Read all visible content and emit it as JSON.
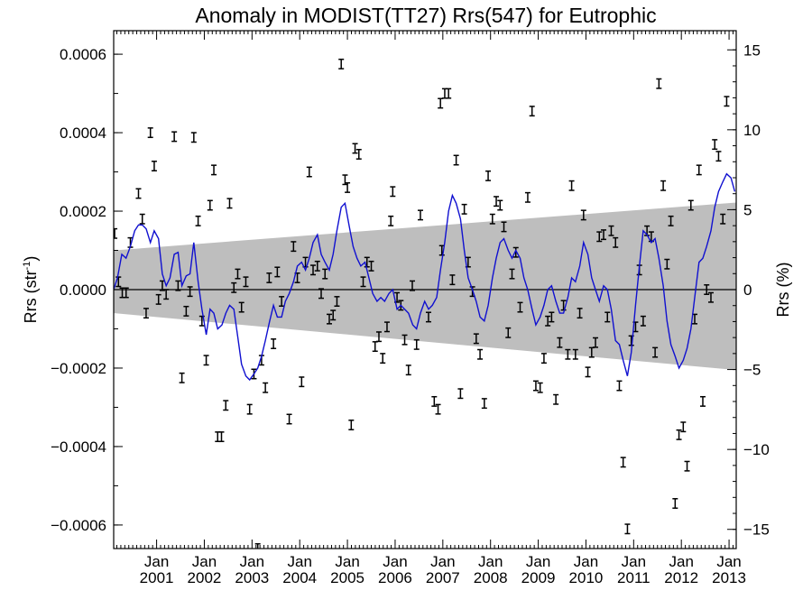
{
  "chart_data": {
    "type": "scatter",
    "title": "Anomaly in MODIST(TT27) Rrs(547) for Eutrophic",
    "ylabel_left": "Rrs (str",
    "ylabel_left_sup": "-1",
    "ylabel_left_close": ")",
    "ylabel_right": "Rrs (%)",
    "xlabel": "",
    "xlim": [
      2000.1,
      2013.15
    ],
    "ylim_left": [
      -0.00066,
      0.00066
    ],
    "ylim_right": [
      -16.2,
      16.2
    ],
    "y_ticks_left": [
      {
        "value": 0.0006,
        "label": "0.0006"
      },
      {
        "value": 0.0004,
        "label": "0.0004"
      },
      {
        "value": 0.0002,
        "label": "0.0002"
      },
      {
        "value": 0.0,
        "label": "0.0000"
      },
      {
        "value": -0.0002,
        "label": "−0.0002"
      },
      {
        "value": -0.0004,
        "label": "−0.0004"
      },
      {
        "value": -0.0006,
        "label": "−0.0006"
      }
    ],
    "y_ticks_right": [
      {
        "value": 15,
        "label": "15"
      },
      {
        "value": 10,
        "label": "10"
      },
      {
        "value": 5,
        "label": "5"
      },
      {
        "value": 0,
        "label": "0"
      },
      {
        "value": -5,
        "label": "−5"
      },
      {
        "value": -10,
        "label": "−10"
      },
      {
        "value": -15,
        "label": "−15"
      }
    ],
    "x_ticks": [
      {
        "value": 2001,
        "month": "Jan",
        "year": "2001"
      },
      {
        "value": 2002,
        "month": "Jan",
        "year": "2002"
      },
      {
        "value": 2003,
        "month": "Jan",
        "year": "2003"
      },
      {
        "value": 2004,
        "month": "Jan",
        "year": "2004"
      },
      {
        "value": 2005,
        "month": "Jan",
        "year": "2005"
      },
      {
        "value": 2006,
        "month": "Jan",
        "year": "2006"
      },
      {
        "value": 2007,
        "month": "Jan",
        "year": "2007"
      },
      {
        "value": 2008,
        "month": "Jan",
        "year": "2008"
      },
      {
        "value": 2009,
        "month": "Jan",
        "year": "2009"
      },
      {
        "value": 2010,
        "month": "Jan",
        "year": "2010"
      },
      {
        "value": 2011,
        "month": "Jan",
        "year": "2011"
      },
      {
        "value": 2012,
        "month": "Jan",
        "year": "2012"
      },
      {
        "value": 2013,
        "month": "Jan",
        "year": "2013"
      }
    ],
    "band": {
      "color": "#bebebe",
      "start": {
        "x": 2000.1,
        "low": -6e-05,
        "high": 0.0001
      },
      "end": {
        "x": 2013.15,
        "low": -0.000205,
        "high": 0.000222
      }
    },
    "zero_line": 0,
    "colors": {
      "points": "#000000",
      "smooth_line": "#1010d0",
      "band": "#bebebe"
    },
    "error_half_width": 1.2e-05,
    "points": [
      {
        "x": 2000.12,
        "y": 0.000143
      },
      {
        "x": 2000.2,
        "y": 2e-05
      },
      {
        "x": 2000.28,
        "y": -8e-06
      },
      {
        "x": 2000.36,
        "y": -8e-06
      },
      {
        "x": 2000.45,
        "y": 0.00012
      },
      {
        "x": 2000.62,
        "y": 0.000245
      },
      {
        "x": 2000.7,
        "y": 0.00018
      },
      {
        "x": 2000.78,
        "y": -6e-05
      },
      {
        "x": 2000.87,
        "y": 0.0004
      },
      {
        "x": 2000.95,
        "y": 0.000315
      },
      {
        "x": 2001.04,
        "y": -2.5e-05
      },
      {
        "x": 2001.12,
        "y": 1e-05
      },
      {
        "x": 2001.2,
        "y": -1.2e-05
      },
      {
        "x": 2001.37,
        "y": 0.00039
      },
      {
        "x": 2001.45,
        "y": 1e-05
      },
      {
        "x": 2001.53,
        "y": -0.000225
      },
      {
        "x": 2001.62,
        "y": -5.5e-05
      },
      {
        "x": 2001.7,
        "y": -5e-06
      },
      {
        "x": 2001.78,
        "y": 0.000388
      },
      {
        "x": 2001.87,
        "y": 0.000175
      },
      {
        "x": 2001.95,
        "y": -8e-05
      },
      {
        "x": 2002.04,
        "y": -0.00018
      },
      {
        "x": 2002.12,
        "y": 0.000215
      },
      {
        "x": 2002.2,
        "y": 0.000305
      },
      {
        "x": 2002.28,
        "y": -0.000375
      },
      {
        "x": 2002.36,
        "y": -0.000375
      },
      {
        "x": 2002.45,
        "y": -0.000295
      },
      {
        "x": 2002.53,
        "y": 0.00022
      },
      {
        "x": 2002.62,
        "y": 5e-06
      },
      {
        "x": 2002.7,
        "y": 4e-05
      },
      {
        "x": 2002.78,
        "y": -4.5e-05
      },
      {
        "x": 2002.87,
        "y": 2e-05
      },
      {
        "x": 2002.95,
        "y": -0.000305
      },
      {
        "x": 2003.04,
        "y": -0.000215
      },
      {
        "x": 2003.12,
        "y": -0.00066
      },
      {
        "x": 2003.2,
        "y": -0.00018
      },
      {
        "x": 2003.28,
        "y": -0.00025
      },
      {
        "x": 2003.36,
        "y": 3e-05
      },
      {
        "x": 2003.45,
        "y": -0.000138
      },
      {
        "x": 2003.53,
        "y": 4.5e-05
      },
      {
        "x": 2003.62,
        "y": -3e-05
      },
      {
        "x": 2003.78,
        "y": -0.00033
      },
      {
        "x": 2003.87,
        "y": 0.00011
      },
      {
        "x": 2003.95,
        "y": 3e-05
      },
      {
        "x": 2004.04,
        "y": -0.000235
      },
      {
        "x": 2004.12,
        "y": 7e-05
      },
      {
        "x": 2004.2,
        "y": 0.0003
      },
      {
        "x": 2004.28,
        "y": 5e-05
      },
      {
        "x": 2004.37,
        "y": 6e-05
      },
      {
        "x": 2004.45,
        "y": -1e-05
      },
      {
        "x": 2004.53,
        "y": 4e-05
      },
      {
        "x": 2004.62,
        "y": -7.5e-05
      },
      {
        "x": 2004.7,
        "y": -6.5e-05
      },
      {
        "x": 2004.78,
        "y": -3e-05
      },
      {
        "x": 2004.87,
        "y": 0.000575
      },
      {
        "x": 2004.95,
        "y": 0.00028
      },
      {
        "x": 2005.0,
        "y": 0.00026
      },
      {
        "x": 2005.08,
        "y": -0.000345
      },
      {
        "x": 2005.16,
        "y": 0.00036
      },
      {
        "x": 2005.24,
        "y": 0.000345
      },
      {
        "x": 2005.33,
        "y": 2e-05
      },
      {
        "x": 2005.41,
        "y": 7e-05
      },
      {
        "x": 2005.5,
        "y": 6e-05
      },
      {
        "x": 2005.58,
        "y": -0.000145
      },
      {
        "x": 2005.66,
        "y": -0.00012
      },
      {
        "x": 2005.74,
        "y": -0.000175
      },
      {
        "x": 2005.83,
        "y": -9.5e-05
      },
      {
        "x": 2005.91,
        "y": 0.000175
      },
      {
        "x": 2005.95,
        "y": 0.00025
      },
      {
        "x": 2006.04,
        "y": -2e-05
      },
      {
        "x": 2006.12,
        "y": -4e-05
      },
      {
        "x": 2006.2,
        "y": -0.000128
      },
      {
        "x": 2006.28,
        "y": -0.000205
      },
      {
        "x": 2006.36,
        "y": 1e-05
      },
      {
        "x": 2006.45,
        "y": -0.00014
      },
      {
        "x": 2006.53,
        "y": 0.00019
      },
      {
        "x": 2006.7,
        "y": -7e-05
      },
      {
        "x": 2006.82,
        "y": -0.000285
      },
      {
        "x": 2006.9,
        "y": -0.000305
      },
      {
        "x": 2006.95,
        "y": 0.000475
      },
      {
        "x": 2006.98,
        "y": 0.0001
      },
      {
        "x": 2007.04,
        "y": 0.0005
      },
      {
        "x": 2007.12,
        "y": 0.0005
      },
      {
        "x": 2007.2,
        "y": 2.5e-05
      },
      {
        "x": 2007.28,
        "y": 0.00033
      },
      {
        "x": 2007.37,
        "y": -0.000265
      },
      {
        "x": 2007.45,
        "y": 0.000205
      },
      {
        "x": 2007.53,
        "y": 7e-05
      },
      {
        "x": 2007.62,
        "y": -5e-06
      },
      {
        "x": 2007.7,
        "y": -0.000125
      },
      {
        "x": 2007.78,
        "y": -0.000165
      },
      {
        "x": 2007.87,
        "y": -0.00029
      },
      {
        "x": 2007.95,
        "y": 0.00029
      },
      {
        "x": 2008.04,
        "y": 0.00018
      },
      {
        "x": 2008.12,
        "y": 0.000225
      },
      {
        "x": 2008.2,
        "y": 0.000215
      },
      {
        "x": 2008.28,
        "y": 0.00016
      },
      {
        "x": 2008.37,
        "y": -0.00011
      },
      {
        "x": 2008.45,
        "y": 4e-05
      },
      {
        "x": 2008.53,
        "y": 9.5e-05
      },
      {
        "x": 2008.62,
        "y": -4.5e-05
      },
      {
        "x": 2008.78,
        "y": 0.000235
      },
      {
        "x": 2008.87,
        "y": 0.000455
      },
      {
        "x": 2008.95,
        "y": -0.000245
      },
      {
        "x": 2009.04,
        "y": -0.00025
      },
      {
        "x": 2009.12,
        "y": -0.000175
      },
      {
        "x": 2009.2,
        "y": -8e-05
      },
      {
        "x": 2009.28,
        "y": -7e-05
      },
      {
        "x": 2009.37,
        "y": -0.00028
      },
      {
        "x": 2009.45,
        "y": -0.000135
      },
      {
        "x": 2009.53,
        "y": -4e-05
      },
      {
        "x": 2009.62,
        "y": -0.000165
      },
      {
        "x": 2009.7,
        "y": 0.000265
      },
      {
        "x": 2009.78,
        "y": -0.000165
      },
      {
        "x": 2009.87,
        "y": -6e-05
      },
      {
        "x": 2009.95,
        "y": 0.00019
      },
      {
        "x": 2010.04,
        "y": -0.00021
      },
      {
        "x": 2010.12,
        "y": -0.00016
      },
      {
        "x": 2010.2,
        "y": -0.000135
      },
      {
        "x": 2010.28,
        "y": 0.000135
      },
      {
        "x": 2010.37,
        "y": 0.00014
      },
      {
        "x": 2010.45,
        "y": -7e-05
      },
      {
        "x": 2010.53,
        "y": 0.00015
      },
      {
        "x": 2010.62,
        "y": 0.00012
      },
      {
        "x": 2010.7,
        "y": -0.000245
      },
      {
        "x": 2010.78,
        "y": -0.00044
      },
      {
        "x": 2010.87,
        "y": -0.00061
      },
      {
        "x": 2010.95,
        "y": -0.00013
      },
      {
        "x": 2011.04,
        "y": -9.5e-05
      },
      {
        "x": 2011.12,
        "y": 5e-05
      },
      {
        "x": 2011.2,
        "y": -8e-05
      },
      {
        "x": 2011.28,
        "y": 0.00015
      },
      {
        "x": 2011.37,
        "y": 0.000135
      },
      {
        "x": 2011.45,
        "y": -0.00016
      },
      {
        "x": 2011.53,
        "y": 0.000525
      },
      {
        "x": 2011.62,
        "y": 0.000265
      },
      {
        "x": 2011.7,
        "y": 6.5e-05
      },
      {
        "x": 2011.78,
        "y": 0.000175
      },
      {
        "x": 2011.87,
        "y": -0.000545
      },
      {
        "x": 2011.95,
        "y": -0.00037
      },
      {
        "x": 2012.04,
        "y": -0.00035
      },
      {
        "x": 2012.12,
        "y": -0.00045
      },
      {
        "x": 2012.2,
        "y": 0.000215
      },
      {
        "x": 2012.28,
        "y": -7.5e-05
      },
      {
        "x": 2012.37,
        "y": 0.000305
      },
      {
        "x": 2012.45,
        "y": -0.000285
      },
      {
        "x": 2012.53,
        "y": 0.0
      },
      {
        "x": 2012.62,
        "y": -2e-05
      },
      {
        "x": 2012.7,
        "y": 0.00037
      },
      {
        "x": 2012.78,
        "y": 0.00034
      },
      {
        "x": 2012.87,
        "y": 0.00018
      },
      {
        "x": 2012.95,
        "y": 0.00048
      }
    ],
    "smooth_line": [
      [
        2000.1,
        0.0
      ],
      [
        2000.18,
        3e-05
      ],
      [
        2000.27,
        9e-05
      ],
      [
        2000.36,
        8e-05
      ],
      [
        2000.45,
        0.00011
      ],
      [
        2000.54,
        0.00015
      ],
      [
        2000.62,
        0.000165
      ],
      [
        2000.7,
        0.000165
      ],
      [
        2000.78,
        0.000155
      ],
      [
        2000.87,
        0.00012
      ],
      [
        2000.95,
        0.00015
      ],
      [
        2001.04,
        0.00013
      ],
      [
        2001.12,
        4e-05
      ],
      [
        2001.2,
        1e-05
      ],
      [
        2001.28,
        3e-05
      ],
      [
        2001.37,
        9e-05
      ],
      [
        2001.45,
        9.5e-05
      ],
      [
        2001.53,
        1e-05
      ],
      [
        2001.62,
        3.5e-05
      ],
      [
        2001.7,
        4e-05
      ],
      [
        2001.78,
        0.00012
      ],
      [
        2001.87,
        2e-05
      ],
      [
        2001.95,
        -5e-05
      ],
      [
        2002.04,
        -0.000115
      ],
      [
        2002.12,
        -5e-05
      ],
      [
        2002.2,
        -6e-05
      ],
      [
        2002.28,
        -0.0001
      ],
      [
        2002.37,
        -9e-05
      ],
      [
        2002.45,
        -6e-05
      ],
      [
        2002.53,
        -4e-05
      ],
      [
        2002.62,
        -5e-05
      ],
      [
        2002.7,
        -0.00012
      ],
      [
        2002.78,
        -0.00019
      ],
      [
        2002.87,
        -0.00022
      ],
      [
        2002.95,
        -0.00023
      ],
      [
        2003.04,
        -0.000215
      ],
      [
        2003.12,
        -0.0002
      ],
      [
        2003.2,
        -0.00017
      ],
      [
        2003.28,
        -0.00013
      ],
      [
        2003.37,
        -8e-05
      ],
      [
        2003.45,
        -4e-05
      ],
      [
        2003.53,
        -7e-05
      ],
      [
        2003.62,
        -7e-05
      ],
      [
        2003.7,
        -3e-05
      ],
      [
        2003.78,
        -1e-05
      ],
      [
        2003.87,
        2e-05
      ],
      [
        2003.95,
        6e-05
      ],
      [
        2004.04,
        7e-05
      ],
      [
        2004.12,
        5e-05
      ],
      [
        2004.2,
        8e-05
      ],
      [
        2004.28,
        0.00012
      ],
      [
        2004.37,
        0.00014
      ],
      [
        2004.45,
        9e-05
      ],
      [
        2004.53,
        7e-05
      ],
      [
        2004.62,
        5e-05
      ],
      [
        2004.7,
        9e-05
      ],
      [
        2004.78,
        0.00015
      ],
      [
        2004.87,
        0.00021
      ],
      [
        2004.95,
        0.00022
      ],
      [
        2005.04,
        0.00016
      ],
      [
        2005.12,
        0.00011
      ],
      [
        2005.2,
        8e-05
      ],
      [
        2005.28,
        6e-05
      ],
      [
        2005.37,
        7e-05
      ],
      [
        2005.45,
        3e-05
      ],
      [
        2005.53,
        -1e-05
      ],
      [
        2005.62,
        -3e-05
      ],
      [
        2005.7,
        -2e-05
      ],
      [
        2005.78,
        -3e-05
      ],
      [
        2005.87,
        -1e-05
      ],
      [
        2005.95,
        0.0
      ],
      [
        2006.04,
        -5e-05
      ],
      [
        2006.12,
        -4e-05
      ],
      [
        2006.2,
        -5e-05
      ],
      [
        2006.28,
        -6e-05
      ],
      [
        2006.37,
        -9e-05
      ],
      [
        2006.45,
        -0.0001
      ],
      [
        2006.53,
        -6e-05
      ],
      [
        2006.62,
        -3e-05
      ],
      [
        2006.7,
        -5e-05
      ],
      [
        2006.78,
        -4e-05
      ],
      [
        2006.87,
        -2e-05
      ],
      [
        2006.95,
        5e-05
      ],
      [
        2007.04,
        0.00012
      ],
      [
        2007.12,
        0.0002
      ],
      [
        2007.2,
        0.00024
      ],
      [
        2007.28,
        0.00022
      ],
      [
        2007.37,
        0.00018
      ],
      [
        2007.45,
        0.0001
      ],
      [
        2007.53,
        3e-05
      ],
      [
        2007.62,
        0.0
      ],
      [
        2007.7,
        -3e-05
      ],
      [
        2007.78,
        -7e-05
      ],
      [
        2007.87,
        -8e-05
      ],
      [
        2007.95,
        -4e-05
      ],
      [
        2008.04,
        3e-05
      ],
      [
        2008.12,
        8e-05
      ],
      [
        2008.2,
        0.00012
      ],
      [
        2008.28,
        0.00013
      ],
      [
        2008.37,
        0.0001
      ],
      [
        2008.45,
        8e-05
      ],
      [
        2008.53,
        0.0001
      ],
      [
        2008.62,
        8e-05
      ],
      [
        2008.7,
        3e-05
      ],
      [
        2008.78,
        0.0
      ],
      [
        2008.87,
        -5e-05
      ],
      [
        2008.95,
        -9e-05
      ],
      [
        2009.04,
        -7e-05
      ],
      [
        2009.12,
        -4e-05
      ],
      [
        2009.2,
        0.0
      ],
      [
        2009.28,
        1e-05
      ],
      [
        2009.37,
        -3e-05
      ],
      [
        2009.45,
        -6e-05
      ],
      [
        2009.53,
        -6e-05
      ],
      [
        2009.62,
        -2e-05
      ],
      [
        2009.7,
        3e-05
      ],
      [
        2009.78,
        2e-05
      ],
      [
        2009.87,
        6e-05
      ],
      [
        2009.95,
        0.00012
      ],
      [
        2010.04,
        9e-05
      ],
      [
        2010.12,
        3e-05
      ],
      [
        2010.2,
        0.0
      ],
      [
        2010.28,
        -3e-05
      ],
      [
        2010.37,
        1e-05
      ],
      [
        2010.45,
        0.0
      ],
      [
        2010.53,
        -5e-05
      ],
      [
        2010.62,
        -0.00013
      ],
      [
        2010.7,
        -0.00014
      ],
      [
        2010.78,
        -0.00018
      ],
      [
        2010.87,
        -0.00022
      ],
      [
        2010.95,
        -0.00016
      ],
      [
        2011.04,
        -4e-05
      ],
      [
        2011.12,
        6e-05
      ],
      [
        2011.2,
        0.00015
      ],
      [
        2011.28,
        0.00014
      ],
      [
        2011.37,
        0.00012
      ],
      [
        2011.45,
        0.00013
      ],
      [
        2011.53,
        8e-05
      ],
      [
        2011.62,
        1e-05
      ],
      [
        2011.7,
        -8e-05
      ],
      [
        2011.78,
        -0.00014
      ],
      [
        2011.87,
        -0.00017
      ],
      [
        2011.95,
        -0.0002
      ],
      [
        2012.04,
        -0.00018
      ],
      [
        2012.12,
        -0.00015
      ],
      [
        2012.2,
        -0.0001
      ],
      [
        2012.28,
        -2e-05
      ],
      [
        2012.37,
        7e-05
      ],
      [
        2012.45,
        8e-05
      ],
      [
        2012.53,
        0.00011
      ],
      [
        2012.62,
        0.00015
      ],
      [
        2012.7,
        0.00021
      ],
      [
        2012.78,
        0.00025
      ],
      [
        2012.87,
        0.000275
      ],
      [
        2012.95,
        0.000295
      ],
      [
        2013.04,
        0.000285
      ],
      [
        2013.12,
        0.00025
      ]
    ]
  }
}
